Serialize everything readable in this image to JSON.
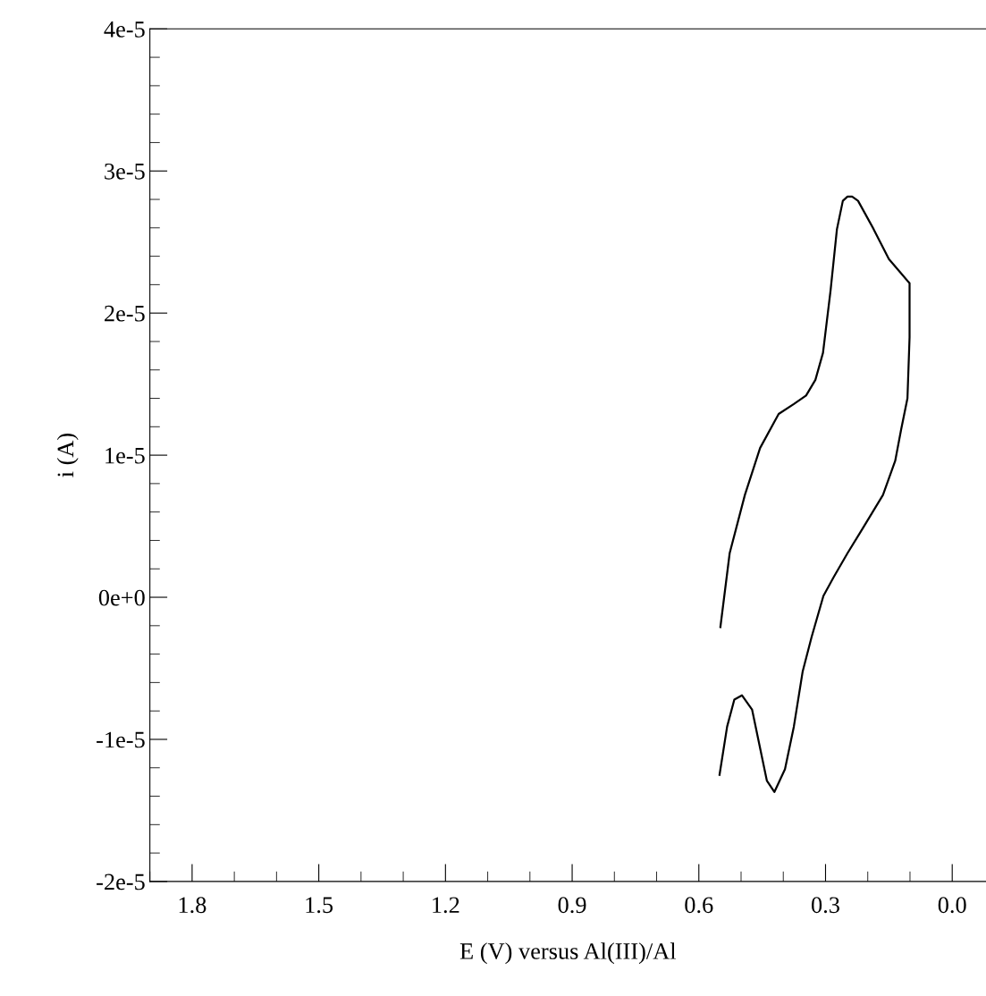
{
  "chart_data": {
    "type": "line",
    "xlabel": "E (V) versus Al(III)/Al",
    "ylabel": "i (A)",
    "x": [
      0.549,
      0.527,
      0.491,
      0.455,
      0.411,
      0.375,
      0.346,
      0.324,
      0.306,
      0.288,
      0.273,
      0.259,
      0.248,
      0.237,
      0.223,
      0.186,
      0.15,
      0.121,
      0.101,
      0.101,
      0.106,
      0.121,
      0.135,
      0.164,
      0.215,
      0.248,
      0.281,
      0.305,
      0.333,
      0.354,
      0.375,
      0.396,
      0.421,
      0.439,
      0.474,
      0.498,
      0.516,
      0.533,
      0.551
    ],
    "series": [
      {
        "color": "#000000",
        "values": [
          -2.1e-06,
          3.1e-06,
          7.2e-06,
          1.05e-05,
          1.29e-05,
          1.36e-05,
          1.42e-05,
          1.53e-05,
          1.72e-05,
          2.16e-05,
          2.59e-05,
          2.79e-05,
          2.82e-05,
          2.82e-05,
          2.79e-05,
          2.59e-05,
          2.38e-05,
          2.28e-05,
          2.21e-05,
          1.83e-05,
          1.4e-05,
          1.18e-05,
          9.6e-06,
          7.2e-06,
          4.7e-06,
          3.1e-06,
          1.4e-06,
          1e-07,
          -2.8e-06,
          -5.2e-06,
          -9.1e-06,
          -1.21e-05,
          -1.37e-05,
          -1.29e-05,
          -7.9e-06,
          -6.9e-06,
          -7.2e-06,
          -9.1e-06,
          -1.25e-05
        ]
      }
    ],
    "xlim": [
      1.9,
      -0.08
    ],
    "xticks": [
      1.8,
      1.5,
      1.2,
      0.9,
      0.6,
      0.3,
      {
        "value": 0,
        "label": "0.0"
      }
    ],
    "ylim": [
      -2e-05,
      4e-05
    ],
    "yticks": [
      {
        "value": -2e-05,
        "label": "-2e-5"
      },
      {
        "value": -1e-05,
        "label": "-1e-5"
      },
      {
        "value": 0,
        "label": "0e+0"
      },
      {
        "value": 1e-05,
        "label": "1e-5"
      },
      {
        "value": 2e-05,
        "label": "2e-5"
      },
      {
        "value": 3e-05,
        "label": "3e-5"
      },
      {
        "value": 4e-05,
        "label": "4e-5"
      }
    ],
    "grid": false,
    "legend": false,
    "marker": "none",
    "line_style": "solid"
  }
}
